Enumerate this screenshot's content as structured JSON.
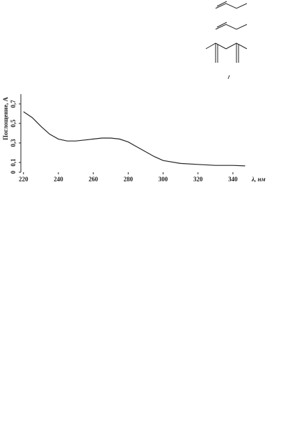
{
  "chart_data": {
    "type": "line",
    "y_label": "Поглощение, А",
    "x_label": "λ, нм",
    "x": [
      220,
      225,
      230,
      235,
      240,
      245,
      250,
      255,
      260,
      265,
      270,
      275,
      280,
      285,
      290,
      295,
      300,
      310,
      320,
      330,
      340,
      347
    ],
    "series": [
      {
        "color": "#222222",
        "values": [
          0.62,
          0.56,
          0.47,
          0.39,
          0.34,
          0.32,
          0.32,
          0.33,
          0.34,
          0.35,
          0.35,
          0.34,
          0.31,
          0.26,
          0.21,
          0.16,
          0.12,
          0.09,
          0.08,
          0.07,
          0.07,
          0.065
        ]
      }
    ],
    "xlim": [
      218.5,
      350
    ],
    "xticks": [
      220,
      240,
      260,
      280,
      300,
      320,
      340
    ],
    "ylim": [
      0,
      0.8
    ],
    "yticks": [
      0,
      {
        "value": 0.1,
        "label": "0,1"
      },
      {
        "value": 0.3,
        "label": "0,3"
      },
      {
        "value": 0.5,
        "label": "0,5"
      },
      {
        "value": 0.7,
        "label": "0,7"
      }
    ]
  }
}
